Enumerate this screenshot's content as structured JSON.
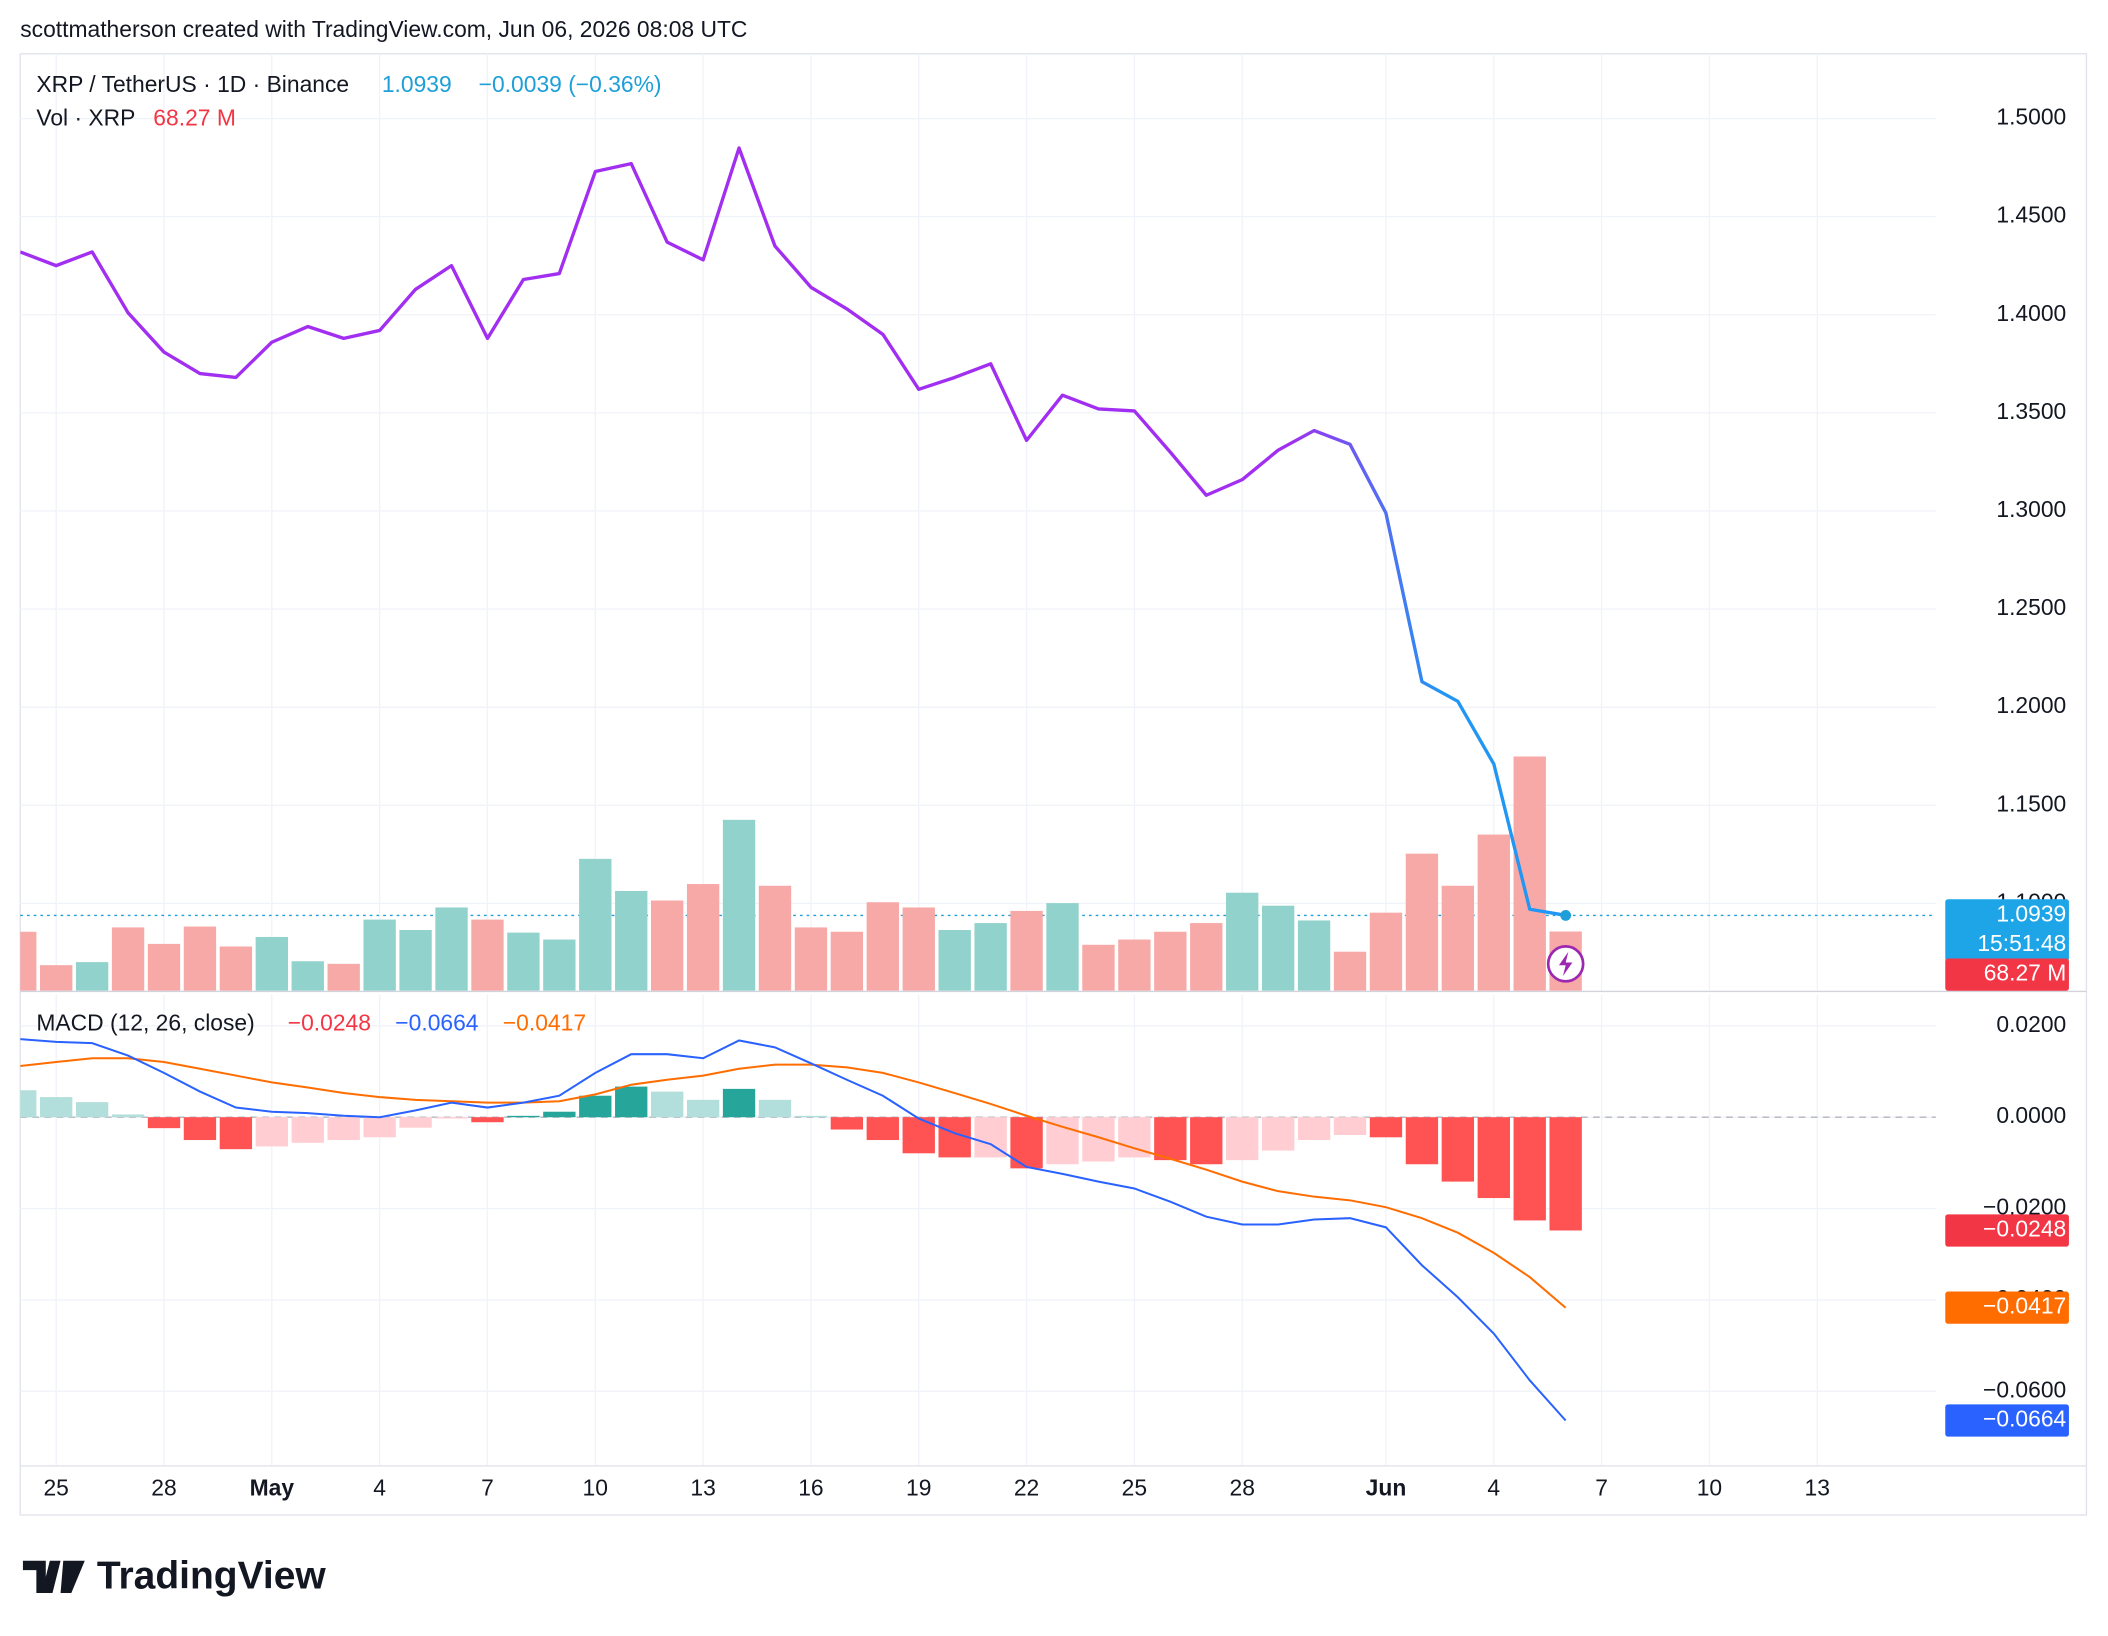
{
  "header": {
    "attribution": "scottmatherson created with TradingView.com, Jun 06, 2026 08:08 UTC"
  },
  "logo": "TradingView",
  "chart_data": {
    "type": "line",
    "legend": {
      "symbol": "XRP / TetherUS · 1D · Binance",
      "price": 1.0939,
      "change": "−0.0039 (−0.36%)",
      "volume_name": "Vol · XRP",
      "volume": "68.27 M",
      "macd_name": "MACD (12, 26, close)",
      "macd_hist": "−0.0248",
      "macd": "−0.0664",
      "macd_signal": "−0.0417"
    },
    "countdown": "15:51:48",
    "grid": true,
    "x": [
      0,
      1,
      2,
      3,
      4,
      5,
      6,
      7,
      8,
      9,
      10,
      11,
      12,
      13,
      14,
      15,
      16,
      17,
      18,
      19,
      20,
      21,
      22,
      23,
      24,
      25,
      26,
      27,
      28,
      29,
      30,
      31,
      32,
      33,
      34,
      35,
      36,
      37,
      38,
      39,
      40,
      41,
      42,
      43
    ],
    "xlim": [
      0,
      53.3
    ],
    "xticks": [
      {
        "value": 1,
        "label": "25"
      },
      {
        "value": 4,
        "label": "28"
      },
      {
        "value": 7,
        "label": "May"
      },
      {
        "value": 10,
        "label": "4"
      },
      {
        "value": 13,
        "label": "7"
      },
      {
        "value": 16,
        "label": "10"
      },
      {
        "value": 19,
        "label": "13"
      },
      {
        "value": 22,
        "label": "16"
      },
      {
        "value": 25,
        "label": "19"
      },
      {
        "value": 28,
        "label": "22"
      },
      {
        "value": 31,
        "label": "25"
      },
      {
        "value": 34,
        "label": "28"
      },
      {
        "value": 38,
        "label": "Jun"
      },
      {
        "value": 41,
        "label": "4"
      },
      {
        "value": 44,
        "label": "7"
      },
      {
        "value": 47,
        "label": "10"
      },
      {
        "value": 50,
        "label": "13"
      }
    ],
    "price": {
      "colors": [
        "#a12ef0",
        "#2196f3"
      ],
      "values": [
        1.432,
        1.425,
        1.432,
        1.401,
        1.381,
        1.37,
        1.368,
        1.386,
        1.394,
        1.388,
        1.392,
        1.413,
        1.425,
        1.388,
        1.418,
        1.421,
        1.473,
        1.477,
        1.437,
        1.428,
        1.485,
        1.435,
        1.414,
        1.403,
        1.39,
        1.362,
        1.368,
        1.375,
        1.336,
        1.359,
        1.352,
        1.351,
        1.33,
        1.308,
        1.316,
        1.331,
        1.341,
        1.334,
        1.299,
        1.213,
        1.203,
        1.171,
        1.097,
        1.0939
      ],
      "ylim": [
        1.0555,
        1.533
      ],
      "yticks": [
        {
          "value": 1.1,
          "label": "1.1000"
        },
        {
          "value": 1.15,
          "label": "1.1500"
        },
        {
          "value": 1.2,
          "label": "1.2000"
        },
        {
          "value": 1.25,
          "label": "1.2500"
        },
        {
          "value": 1.3,
          "label": "1.3000"
        },
        {
          "value": 1.35,
          "label": "1.3500"
        },
        {
          "value": 1.4,
          "label": "1.4000"
        },
        {
          "value": 1.45,
          "label": "1.4500"
        },
        {
          "value": 1.5,
          "label": "1.5000"
        }
      ]
    },
    "volume": {
      "ylim": [
        0,
        1080
      ],
      "values": [
        68,
        29.5,
        33,
        73,
        54,
        74,
        51,
        62,
        34,
        31,
        82,
        70,
        96,
        82,
        67,
        59,
        152,
        115,
        104,
        123,
        197,
        121,
        73,
        68,
        102,
        96,
        70,
        78,
        92,
        101,
        53,
        59,
        68,
        78,
        113,
        98,
        81,
        45,
        90,
        158,
        121,
        180,
        270,
        68.27
      ],
      "colors": [
        "#f7a9a7",
        "#f7a9a7",
        "#92d2cc",
        "#f7a9a7",
        "#f7a9a7",
        "#f7a9a7",
        "#f7a9a7",
        "#92d2cc",
        "#92d2cc",
        "#f7a9a7",
        "#92d2cc",
        "#92d2cc",
        "#92d2cc",
        "#f7a9a7",
        "#92d2cc",
        "#92d2cc",
        "#92d2cc",
        "#92d2cc",
        "#f7a9a7",
        "#f7a9a7",
        "#92d2cc",
        "#f7a9a7",
        "#f7a9a7",
        "#f7a9a7",
        "#f7a9a7",
        "#f7a9a7",
        "#92d2cc",
        "#92d2cc",
        "#f7a9a7",
        "#92d2cc",
        "#f7a9a7",
        "#f7a9a7",
        "#f7a9a7",
        "#f7a9a7",
        "#92d2cc",
        "#92d2cc",
        "#92d2cc",
        "#f7a9a7",
        "#f7a9a7",
        "#f7a9a7",
        "#f7a9a7",
        "#f7a9a7",
        "#f7a9a7",
        "#f7a9a7"
      ]
    },
    "macd": {
      "ylim": [
        -0.0762,
        0.0268
      ],
      "yticks": [
        {
          "value": 0.02,
          "label": "0.0200"
        },
        {
          "value": 0,
          "label": "0.0000"
        },
        {
          "value": -0.02,
          "label": "−0.0200"
        },
        {
          "value": -0.04,
          "label": "−0.0400"
        },
        {
          "value": -0.06,
          "label": "−0.0600"
        }
      ],
      "histogram": {
        "values": [
          0.0059,
          0.0044,
          0.0033,
          0.0006,
          -0.0024,
          -0.005,
          -0.007,
          -0.0064,
          -0.0056,
          -0.005,
          -0.0044,
          -0.0023,
          -0.0003,
          -0.0011,
          0.0003,
          0.0012,
          0.0047,
          0.0067,
          0.0056,
          0.0038,
          0.0062,
          0.0038,
          0.0003,
          -0.0027,
          -0.005,
          -0.0079,
          -0.0088,
          -0.0088,
          -0.0112,
          -0.0103,
          -0.0097,
          -0.0088,
          -0.0094,
          -0.0103,
          -0.0094,
          -0.0073,
          -0.005,
          -0.0039,
          -0.0044,
          -0.0103,
          -0.0141,
          -0.0177,
          -0.0226,
          -0.0248
        ],
        "colors": [
          "#b2dfdb",
          "#b2dfdb",
          "#b2dfdb",
          "#b2dfdb",
          "#ff5252",
          "#ff5252",
          "#ff5252",
          "#ffcdd2",
          "#ffcdd2",
          "#ffcdd2",
          "#ffcdd2",
          "#ffcdd2",
          "#ffcdd2",
          "#ff5252",
          "#26a69a",
          "#26a69a",
          "#26a69a",
          "#26a69a",
          "#b2dfdb",
          "#b2dfdb",
          "#26a69a",
          "#b2dfdb",
          "#b2dfdb",
          "#ff5252",
          "#ff5252",
          "#ff5252",
          "#ff5252",
          "#ffcdd2",
          "#ff5252",
          "#ffcdd2",
          "#ffcdd2",
          "#ffcdd2",
          "#ff5252",
          "#ff5252",
          "#ffcdd2",
          "#ffcdd2",
          "#ffcdd2",
          "#ffcdd2",
          "#ff5252",
          "#ff5252",
          "#ff5252",
          "#ff5252",
          "#ff5252",
          "#ff5252"
        ]
      },
      "macd": {
        "color": "#2962ff",
        "values": [
          0.0171,
          0.0165,
          0.0162,
          0.0135,
          0.0097,
          0.0056,
          0.0021,
          0.0012,
          0.0009,
          0.0003,
          0.0,
          0.0015,
          0.0032,
          0.0021,
          0.0032,
          0.0047,
          0.0097,
          0.0138,
          0.0138,
          0.0129,
          0.0168,
          0.0153,
          0.0118,
          0.0082,
          0.0047,
          -0.0003,
          -0.0035,
          -0.0059,
          -0.0109,
          -0.0124,
          -0.0141,
          -0.0156,
          -0.0185,
          -0.0218,
          -0.0235,
          -0.0235,
          -0.0224,
          -0.0221,
          -0.0241,
          -0.0324,
          -0.0394,
          -0.0474,
          -0.0576,
          -0.0664
        ]
      },
      "signal": {
        "color": "#ff6d00",
        "values": [
          0.0112,
          0.0121,
          0.0129,
          0.0129,
          0.0121,
          0.0106,
          0.0091,
          0.0076,
          0.0065,
          0.0053,
          0.0044,
          0.0038,
          0.0035,
          0.0032,
          0.0032,
          0.0035,
          0.005,
          0.0071,
          0.0082,
          0.0091,
          0.0106,
          0.0115,
          0.0115,
          0.0109,
          0.0097,
          0.0076,
          0.0053,
          0.0029,
          0.0003,
          -0.0021,
          -0.0044,
          -0.0068,
          -0.0091,
          -0.0115,
          -0.0141,
          -0.0162,
          -0.0174,
          -0.0182,
          -0.0197,
          -0.0221,
          -0.0253,
          -0.0297,
          -0.035,
          -0.0417
        ]
      }
    }
  }
}
